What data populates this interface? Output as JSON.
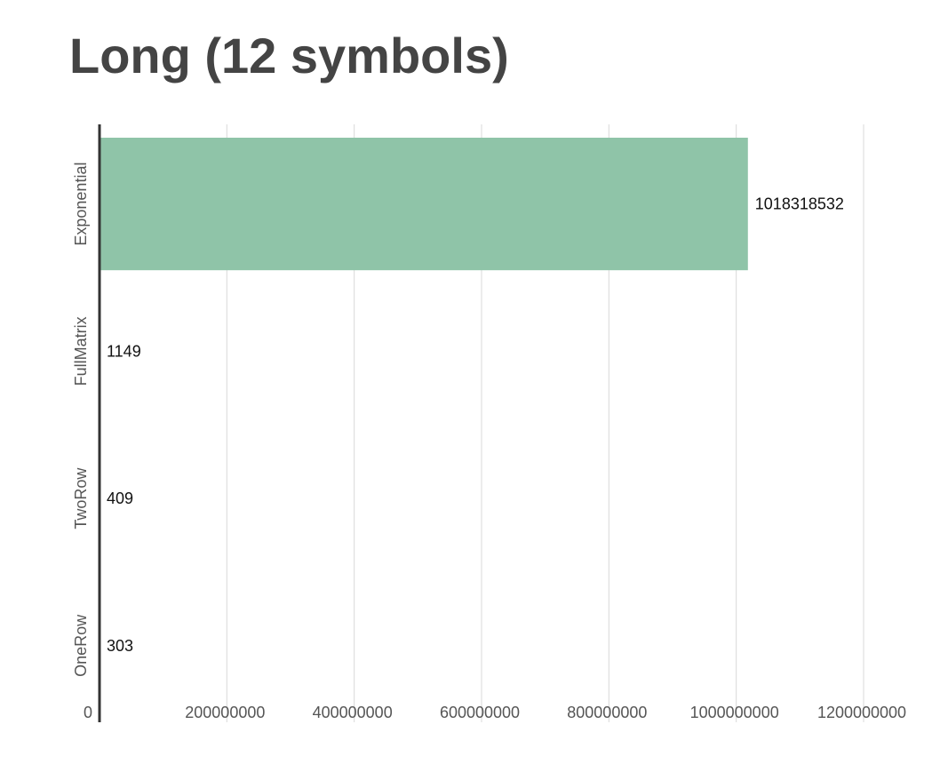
{
  "chart_data": {
    "type": "bar",
    "orientation": "horizontal",
    "title": "Long (12 symbols)",
    "categories": [
      "Exponential",
      "FullMatrix",
      "TwoRow",
      "OneRow"
    ],
    "values": [
      1018318532,
      1149,
      409,
      303
    ],
    "data_labels": [
      "1018318532",
      "1149",
      "409",
      "303"
    ],
    "x_ticks": [
      0,
      200000000,
      400000000,
      600000000,
      800000000,
      1000000000,
      1200000000
    ],
    "x_tick_labels": [
      "0",
      "200000000",
      "400000000",
      "600000000",
      "800000000",
      "1000000000",
      "1200000000"
    ],
    "xlim": [
      0,
      1200000000
    ],
    "grid": true,
    "bar_color": "#8fc4a8"
  }
}
